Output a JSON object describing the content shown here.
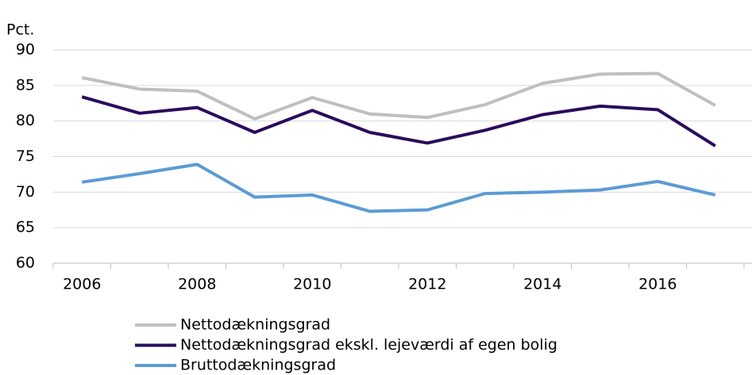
{
  "chart_data": {
    "type": "line",
    "y_axis_label": "Pct.",
    "categories": [
      "2006",
      null,
      "2008",
      null,
      "2010",
      null,
      "2012",
      null,
      "2014",
      null,
      "2016",
      null
    ],
    "series": [
      {
        "name": "Nettodækningsgrad",
        "color": "#bfbfbf",
        "values": [
          86.1,
          84.5,
          84.2,
          80.3,
          83.3,
          81.0,
          80.5,
          82.3,
          85.3,
          86.6,
          86.7,
          82.2
        ]
      },
      {
        "name": "Nettodækningsgrad ekskl. lejeværdi af egen bolig",
        "color": "#2a0b5c",
        "values": [
          83.4,
          81.1,
          81.9,
          78.4,
          81.5,
          78.4,
          76.9,
          78.7,
          80.9,
          82.1,
          81.6,
          76.5
        ]
      },
      {
        "name": "Bruttodækningsgrad",
        "color": "#5b9bd5",
        "values": [
          71.4,
          72.6,
          73.9,
          69.3,
          69.6,
          67.3,
          67.5,
          69.8,
          70.0,
          70.3,
          71.5,
          69.6
        ]
      }
    ],
    "ylim": [
      60,
      90
    ],
    "yticks": [
      60,
      65,
      70,
      75,
      80,
      85,
      90
    ],
    "grid": true,
    "legend": "bottom"
  }
}
